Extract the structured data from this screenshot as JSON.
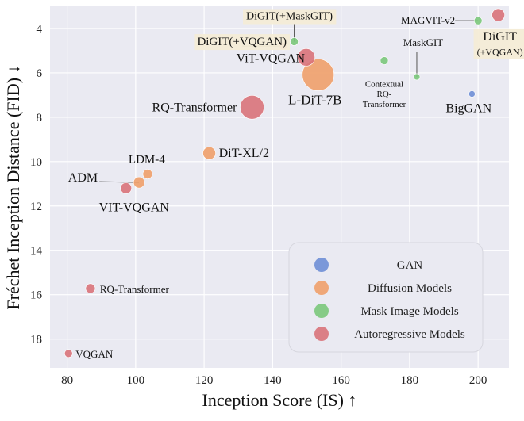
{
  "chart_data": {
    "type": "scatter",
    "title": "",
    "xlabel": "Inception Score (IS) ↑",
    "ylabel": "Fréchet Inception Distance (FID) ↓",
    "xlim": [
      75,
      209
    ],
    "ylim": [
      3.0,
      19.3
    ],
    "y_inverted": true,
    "grid": true,
    "xticks": [
      80,
      100,
      120,
      140,
      160,
      180,
      200
    ],
    "yticks": [
      4,
      6,
      8,
      10,
      12,
      14,
      16,
      18
    ],
    "legend_position": "bottom-right",
    "series": [
      {
        "name": "GAN",
        "color": "#6f8fd6"
      },
      {
        "name": "Diffusion Models",
        "color": "#f0a06a"
      },
      {
        "name": "Mask Image Models",
        "color": "#7bc87b"
      },
      {
        "name": "Autoregressive Models",
        "color": "#d9737a"
      }
    ],
    "points": [
      {
        "label": "BigGAN",
        "series": 0,
        "x": 198.2,
        "y": 6.95,
        "size": 4
      },
      {
        "label": "LDM-4",
        "series": 1,
        "x": 103.5,
        "y": 10.56,
        "size": 6
      },
      {
        "label": "ADM",
        "series": 1,
        "x": 101.0,
        "y": 10.94,
        "size": 7
      },
      {
        "label": "DiT-XL/2",
        "series": 1,
        "x": 121.5,
        "y": 9.62,
        "size": 8
      },
      {
        "label": "L-DiT-7B",
        "series": 1,
        "x": 153.3,
        "y": 6.09,
        "size": 20
      },
      {
        "label": "MaskGIT",
        "series": 2,
        "x": 182.1,
        "y": 6.18,
        "size": 4
      },
      {
        "label": "Contextual RQ-Transformer",
        "series": 2,
        "x": 172.6,
        "y": 5.45,
        "size": 5
      },
      {
        "label": "MAGVIT-v2",
        "series": 2,
        "x": 200.0,
        "y": 3.65,
        "size": 5
      },
      {
        "label": "DiGIT(+MaskGIT)",
        "series": 2,
        "x": 146.3,
        "y": 4.59,
        "size": 5
      },
      {
        "label": "VQGAN",
        "series": 3,
        "x": 80.4,
        "y": 18.65,
        "size": 5
      },
      {
        "label": "RQ-Transformer",
        "series": 3,
        "x": 86.8,
        "y": 15.72,
        "size": 6
      },
      {
        "label": "VIT-VQGAN",
        "series": 3,
        "x": 97.2,
        "y": 11.2,
        "size": 7
      },
      {
        "label": "RQ-Transformer",
        "series": 3,
        "x": 134.0,
        "y": 7.55,
        "size": 15
      },
      {
        "label": "ViT-VQGAN",
        "series": 3,
        "x": 149.8,
        "y": 5.3,
        "size": 11
      },
      {
        "label": "DiGIT(+VQGAN)",
        "series": 3,
        "x": 143.1,
        "y": 4.79,
        "size": 5
      },
      {
        "label": "DiGIT(+VQGAN)",
        "series": 3,
        "x": 205.9,
        "y": 3.39,
        "size": 8
      }
    ]
  }
}
